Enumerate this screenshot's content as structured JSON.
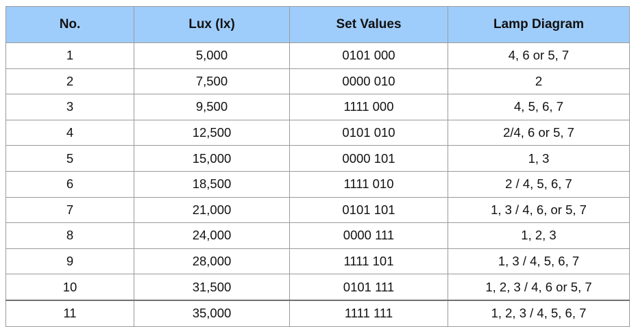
{
  "table": {
    "headers": [
      "No.",
      "Lux (lx)",
      "Set Values",
      "Lamp Diagram"
    ],
    "rows": [
      [
        "1",
        "5,000",
        "0101 000",
        "4, 6 or 5, 7"
      ],
      [
        "2",
        "7,500",
        "0000 010",
        "2"
      ],
      [
        "3",
        "9,500",
        "1111 000",
        "4, 5, 6, 7"
      ],
      [
        "4",
        "12,500",
        "0101 010",
        "2/4, 6 or 5, 7"
      ],
      [
        "5",
        "15,000",
        "0000 101",
        "1, 3"
      ],
      [
        "6",
        "18,500",
        "1111 010",
        "2 / 4, 5, 6, 7"
      ],
      [
        "7",
        "21,000",
        "0101 101",
        "1, 3 / 4, 6, or 5, 7"
      ],
      [
        "8",
        "24,000",
        "0000 111",
        "1, 2, 3"
      ],
      [
        "9",
        "28,000",
        "1111 101",
        "1, 3 / 4, 5, 6, 7"
      ],
      [
        "10",
        "31,500",
        "0101 111",
        "1, 2, 3 / 4, 6 or 5, 7"
      ],
      [
        "11",
        "35,000",
        "1111 111",
        "1, 2, 3 / 4, 5, 6, 7"
      ]
    ]
  },
  "colors": {
    "header_background": "#9fcdfb",
    "grid_lines": "#9a9a9a"
  }
}
